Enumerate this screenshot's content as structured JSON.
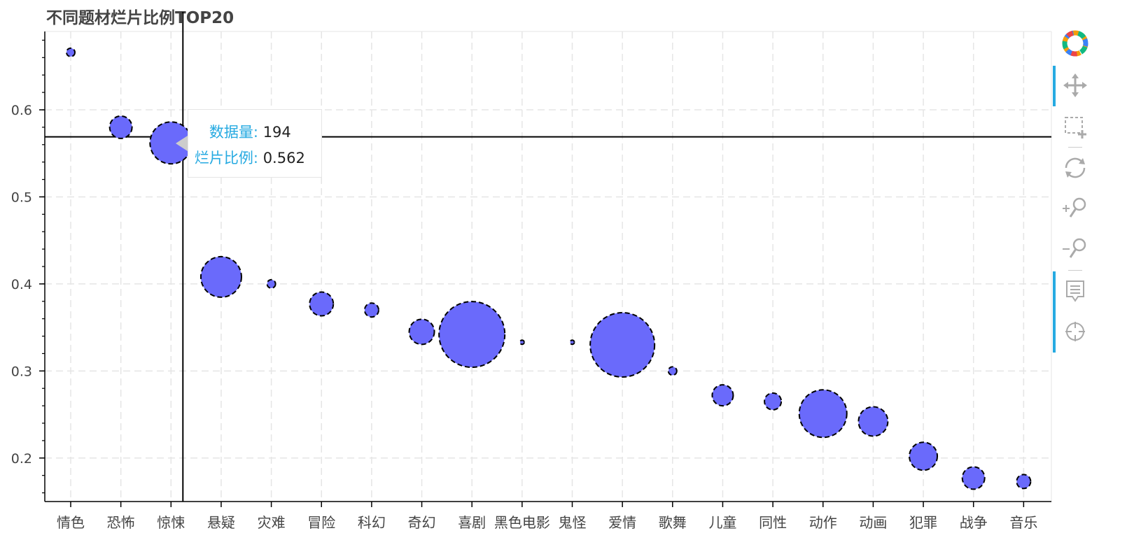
{
  "chart_data": {
    "type": "scatter",
    "title": "不同题材烂片比例TOP20",
    "xlabel": "",
    "ylabel": "",
    "categories": [
      "情色",
      "恐怖",
      "惊悚",
      "悬疑",
      "灾难",
      "冒险",
      "科幻",
      "奇幻",
      "喜剧",
      "黑色电影",
      "鬼怪",
      "爱情",
      "歌舞",
      "儿童",
      "同性",
      "动作",
      "动画",
      "犯罪",
      "战争",
      "音乐"
    ],
    "values": [
      0.666,
      0.58,
      0.562,
      0.408,
      0.4,
      0.377,
      0.37,
      0.345,
      0.342,
      0.333,
      0.333,
      0.33,
      0.3,
      0.272,
      0.265,
      0.251,
      0.242,
      0.202,
      0.177,
      0.173
    ],
    "relative_sizes": [
      6,
      16,
      30,
      29,
      6,
      17,
      10,
      18,
      47,
      3,
      3,
      46,
      6,
      15,
      12,
      34,
      21,
      20,
      16,
      10
    ],
    "ylim": [
      0.15,
      0.69
    ],
    "yticks": [
      0.2,
      0.3,
      0.4,
      0.5,
      0.6
    ],
    "ytick_labels": [
      "0.2",
      "0.3",
      "0.4",
      "0.5",
      "0.6"
    ],
    "grid": true,
    "point_color": "#6a6afb",
    "point_line_color": "#000000",
    "tooltip": {
      "label_count": "数据量:",
      "value_count": "194",
      "label_ratio": "烂片比例:",
      "value_ratio": "0.562"
    },
    "crosshair": {
      "x": "惊悚",
      "y": 0.569
    }
  },
  "toolbar": {
    "tools": [
      "logo-icon",
      "pan-icon",
      "box-zoom-icon",
      "reset-icon",
      "zoom-in-icon",
      "zoom-out-icon",
      "hover-icon",
      "crosshair-icon"
    ],
    "accent": "#26aae1"
  }
}
